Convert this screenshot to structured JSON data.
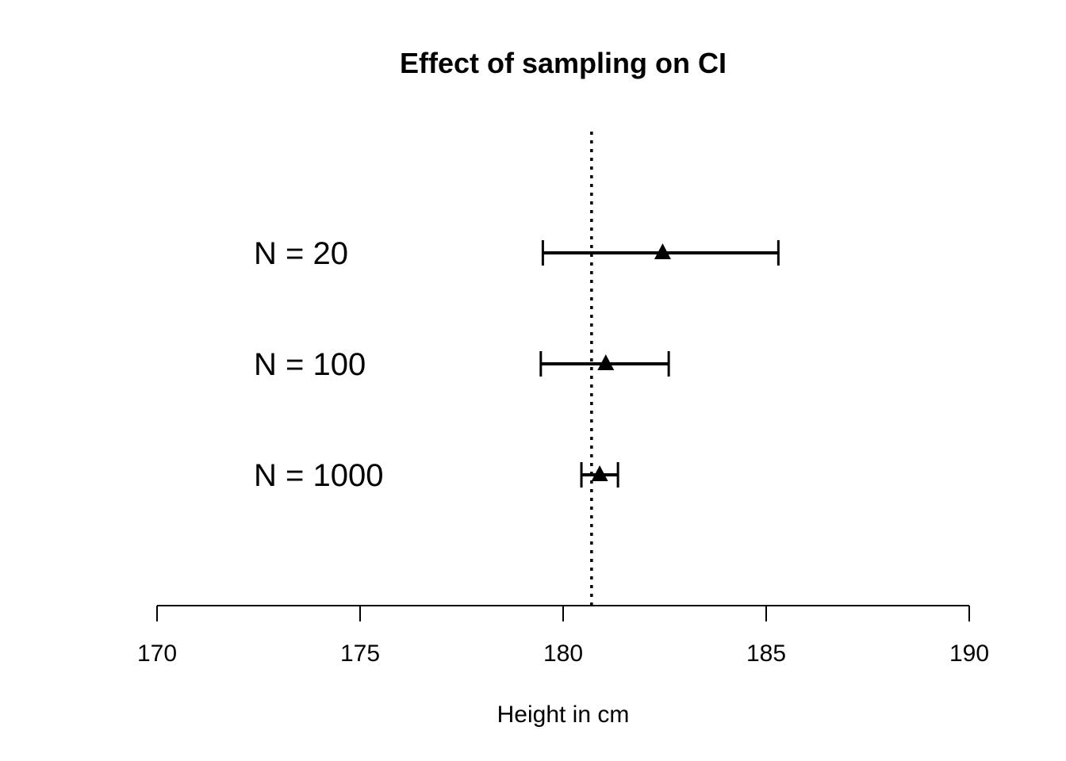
{
  "chart_data": {
    "type": "scatter",
    "title": "Effect of sampling on CI",
    "xlabel": "Height in cm",
    "ylabel": "",
    "xlim": [
      170,
      190
    ],
    "xticks": [
      170,
      175,
      180,
      185,
      190
    ],
    "reference_line": {
      "x": 180.7,
      "style": "dotted"
    },
    "series": [
      {
        "label": "N = 20",
        "estimate": 182.45,
        "lower": 179.5,
        "upper": 185.3
      },
      {
        "label": "N = 100",
        "estimate": 181.05,
        "lower": 179.45,
        "upper": 182.6
      },
      {
        "label": "N = 1000",
        "estimate": 180.9,
        "lower": 180.45,
        "upper": 181.35
      }
    ],
    "marker": "triangle",
    "grid": false,
    "colors": {
      "ink": "#000000",
      "background": "#ffffff"
    }
  }
}
